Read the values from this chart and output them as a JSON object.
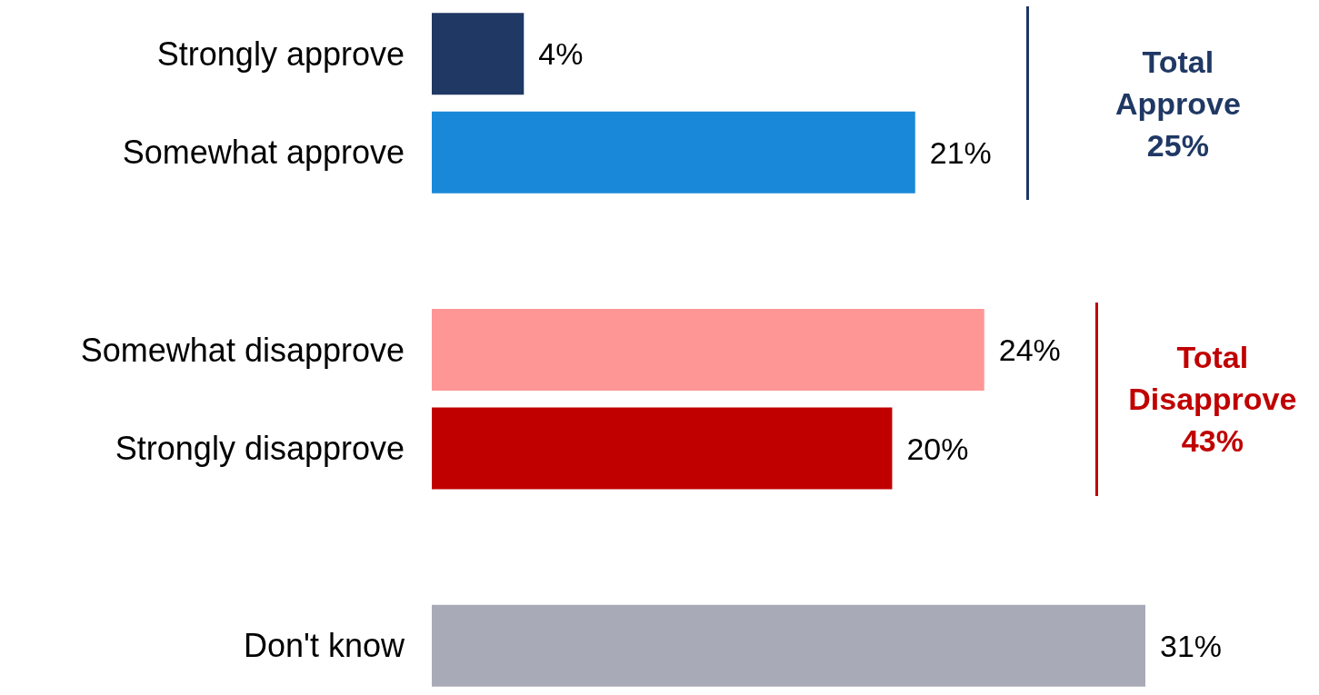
{
  "chart_data": {
    "type": "bar",
    "orientation": "horizontal",
    "categories": [
      "Strongly approve",
      "Somewhat approve",
      null,
      "Somewhat disapprove",
      "Strongly disapprove",
      null,
      "Don't know"
    ],
    "values": [
      4,
      21,
      null,
      24,
      20,
      null,
      31
    ],
    "colors": [
      "#1f3864",
      "#1a88d8",
      null,
      "#ff9696",
      "#c00000",
      null,
      "#a9aab8"
    ],
    "value_labels": [
      "4%",
      "21%",
      null,
      "24%",
      "20%",
      null,
      "31%"
    ],
    "annotations": [
      "Total\nApprove\n25%",
      "Total\nDisapprove\n43%"
    ]
  }
}
